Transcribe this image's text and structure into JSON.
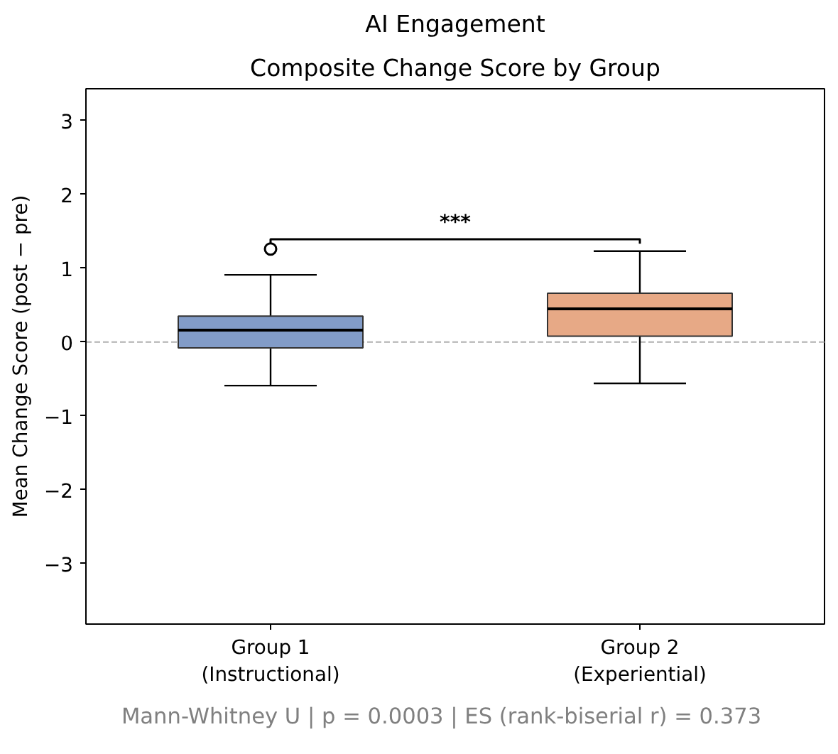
{
  "chart_data": {
    "type": "box",
    "title": "AI Engagement",
    "subtitle": "Composite Change Score by Group",
    "ylabel": "Mean Change Score (post − pre)",
    "categories": [
      "Group 1\n(Instructional)",
      "Group 2\n(Experiential)"
    ],
    "boxes": [
      {
        "low": -0.59,
        "q1": -0.08,
        "median": 0.16,
        "q3": 0.35,
        "high": 0.91,
        "outliers": [
          1.26
        ]
      },
      {
        "low": -0.56,
        "q1": 0.08,
        "median": 0.45,
        "q3": 0.66,
        "high": 1.23
      }
    ],
    "colors": [
      "#829cc8",
      "#e7a986"
    ],
    "ylim": [
      -3.82,
      3.43
    ],
    "yticks": [
      -3,
      -2,
      -1,
      0,
      1,
      2,
      3
    ],
    "ref_lines": [
      {
        "axis": "y",
        "value": 0,
        "color": "#b0b0b0",
        "line_style": "dashed"
      }
    ],
    "annotations": [
      "***",
      "Mann-Whitney U  |  p = 0.0003  |  ES (rank-biserial r) = 0.373"
    ]
  }
}
